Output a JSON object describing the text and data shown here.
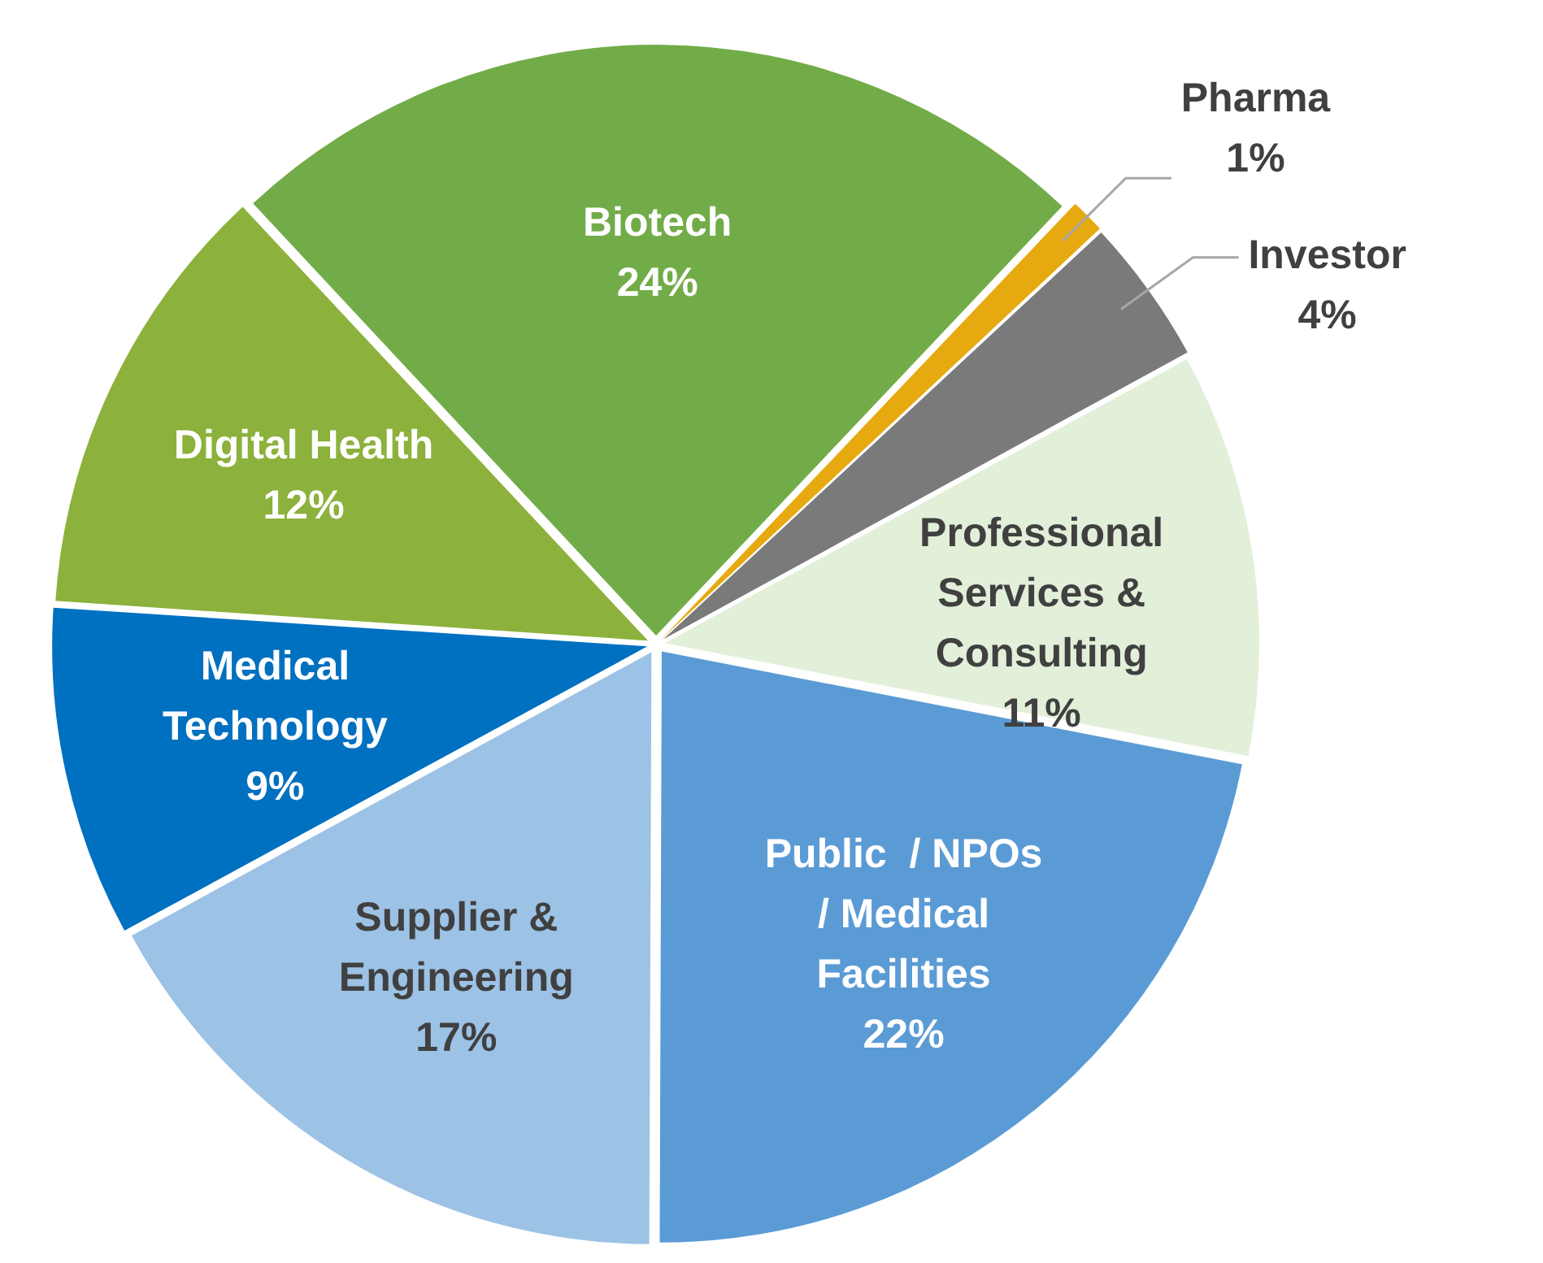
{
  "chart_data": {
    "type": "pie",
    "categories": [
      "Biotech",
      "Pharma",
      "Investor",
      "Professional Services & Consulting",
      "Public  / NPOs / Medical Facilities",
      "Supplier & Engineering",
      "Medical Technology",
      "Digital Health"
    ],
    "values": [
      24,
      1,
      4,
      11,
      22,
      17,
      9,
      12
    ],
    "value_labels": [
      "24%",
      "1%",
      "4%",
      "11%",
      "22%",
      "17%",
      "9%",
      "12%"
    ],
    "colors": [
      "#72ac48",
      "#e6a910",
      "#7a7a7a",
      "#e2efd9",
      "#5b9bd5",
      "#9cc2e5",
      "#0070c0",
      "#8cb13c"
    ],
    "legend": false
  }
}
